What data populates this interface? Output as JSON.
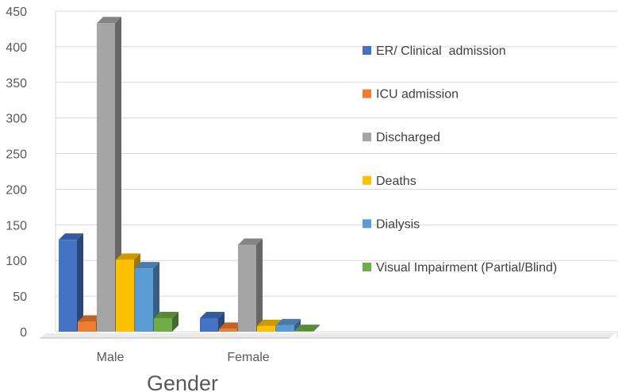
{
  "chart_data": {
    "type": "bar",
    "title": "",
    "xlabel": "Gender",
    "ylabel": "",
    "categories": [
      "Male",
      "Female"
    ],
    "ylim": [
      0,
      450
    ],
    "yticks": [
      0,
      50,
      100,
      150,
      200,
      250,
      300,
      350,
      400,
      450
    ],
    "grid": true,
    "legend_position": "right",
    "series": [
      {
        "name": "ER/ Clinical  admission",
        "color": "#4472c4",
        "values": [
          129,
          19
        ]
      },
      {
        "name": "ICU admission",
        "color": "#ed7d31",
        "values": [
          14,
          4
        ]
      },
      {
        "name": "Discharged",
        "color": "#a5a5a5",
        "values": [
          433,
          122
        ]
      },
      {
        "name": "Deaths",
        "color": "#ffc000",
        "values": [
          101,
          8
        ]
      },
      {
        "name": "Dialysis",
        "color": "#5b9bd5",
        "values": [
          89,
          9
        ]
      },
      {
        "name": "Visual Impairment (Partial/Blind)",
        "color": "#70ad47",
        "values": [
          19,
          1
        ]
      }
    ]
  }
}
